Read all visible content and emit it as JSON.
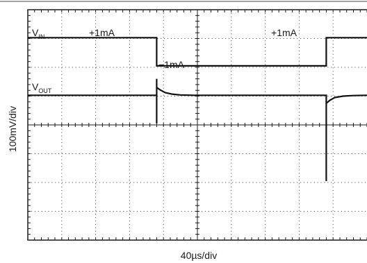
{
  "chart_data": {
    "type": "line",
    "subtype": "oscilloscope-trace",
    "xlabel": "40µs/div",
    "ylabel": "100mV/div",
    "divisions": {
      "x": 10,
      "y": 8
    },
    "grid": "dotted",
    "x_unit": "div",
    "y_unit": "div",
    "series": [
      {
        "name": "V_IN",
        "label_main": "V",
        "label_sub": "IN",
        "x": [
          0,
          3.8,
          3.8,
          8.8,
          8.8,
          10
        ],
        "y": [
          7.03,
          7.03,
          6.05,
          6.05,
          7.03,
          7.03
        ]
      },
      {
        "name": "V_OUT",
        "label_main": "V",
        "label_sub": "OUT",
        "x": [
          0,
          3.8,
          3.8,
          3.8,
          3.8,
          3.9,
          4.05,
          4.25,
          4.5,
          4.9,
          5.5,
          8.8,
          8.8,
          8.8,
          8.8,
          8.9,
          9.05,
          9.3,
          9.6,
          10
        ],
        "y": [
          5.03,
          5.03,
          5.6,
          4.05,
          5.3,
          5.22,
          5.12,
          5.07,
          5.04,
          5.03,
          5.03,
          5.03,
          2.05,
          4.95,
          4.75,
          4.85,
          4.95,
          5.0,
          5.02,
          5.03
        ]
      }
    ],
    "annotations": [
      "+1mA",
      "−1mA",
      "+1mA"
    ]
  }
}
